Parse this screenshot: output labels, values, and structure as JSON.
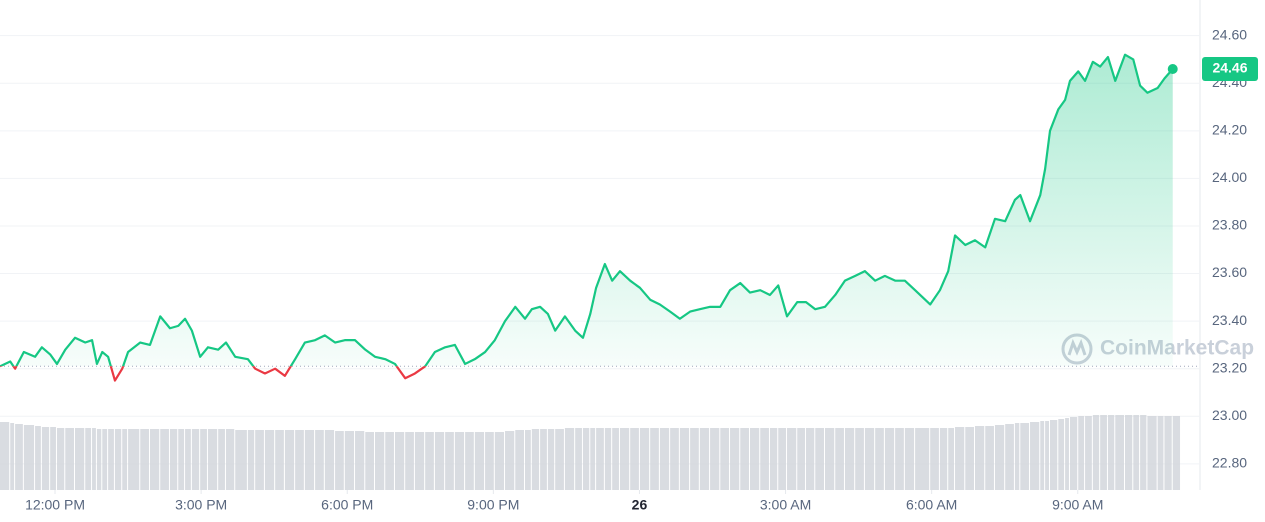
{
  "chart_data": {
    "type": "line",
    "watermark": "CoinMarketCap",
    "baseline": 23.21,
    "line_color": "#16c784",
    "below_color": "#ea3943",
    "volume_color": "#cfd3da",
    "grid": true,
    "xlim": [
      -1.13,
      23.51
    ],
    "ylim": [
      22.69,
      24.75
    ],
    "xticks": [
      {
        "value": 0,
        "label": "12:00 PM"
      },
      {
        "value": 3,
        "label": "3:00 PM"
      },
      {
        "value": 6,
        "label": "6:00 PM"
      },
      {
        "value": 9,
        "label": "9:00 PM"
      },
      {
        "value": 12,
        "label": "26"
      },
      {
        "value": 15,
        "label": "3:00 AM"
      },
      {
        "value": 18,
        "label": "6:00 AM"
      },
      {
        "value": 21,
        "label": "9:00 AM"
      }
    ],
    "yticks": [
      {
        "value": 22.8,
        "label": "22.80"
      },
      {
        "value": 23.0,
        "label": "23.00"
      },
      {
        "value": 23.2,
        "label": "23.20"
      },
      {
        "value": 23.4,
        "label": "23.40"
      },
      {
        "value": 23.6,
        "label": "23.60"
      },
      {
        "value": 23.8,
        "label": "23.80"
      },
      {
        "value": 24.0,
        "label": "24.00"
      },
      {
        "value": 24.2,
        "label": "24.20"
      },
      {
        "value": 24.4,
        "label": "24.40"
      },
      {
        "value": 24.6,
        "label": "24.60"
      }
    ],
    "x": [
      -1.13,
      -0.92,
      -0.82,
      -0.64,
      -0.41,
      -0.27,
      -0.1,
      0.04,
      0.21,
      0.41,
      0.62,
      0.76,
      0.86,
      0.97,
      1.09,
      1.23,
      1.38,
      1.5,
      1.75,
      1.95,
      2.16,
      2.36,
      2.53,
      2.67,
      2.81,
      2.98,
      3.14,
      3.35,
      3.51,
      3.7,
      3.96,
      4.11,
      4.31,
      4.52,
      4.72,
      4.93,
      5.13,
      5.34,
      5.54,
      5.75,
      5.95,
      6.16,
      6.37,
      6.57,
      6.78,
      6.98,
      7.19,
      7.39,
      7.6,
      7.8,
      8.01,
      8.21,
      8.42,
      8.62,
      8.83,
      9.03,
      9.24,
      9.45,
      9.65,
      9.79,
      9.96,
      10.12,
      10.27,
      10.47,
      10.68,
      10.84,
      10.99,
      11.11,
      11.29,
      11.44,
      11.6,
      11.81,
      12.01,
      12.22,
      12.42,
      12.63,
      12.83,
      13.04,
      13.24,
      13.45,
      13.66,
      13.86,
      14.07,
      14.27,
      14.48,
      14.68,
      14.85,
      15.03,
      15.24,
      15.42,
      15.61,
      15.81,
      16.02,
      16.22,
      16.43,
      16.63,
      16.84,
      17.04,
      17.25,
      17.45,
      17.66,
      17.97,
      18.17,
      18.34,
      18.48,
      18.69,
      18.89,
      19.1,
      19.3,
      19.51,
      19.71,
      19.82,
      20.02,
      20.23,
      20.33,
      20.43,
      20.6,
      20.74,
      20.84,
      21.01,
      21.15,
      21.31,
      21.46,
      21.62,
      21.77,
      21.97,
      22.14,
      22.28,
      22.43,
      22.64,
      22.78,
      22.95
    ],
    "series": [
      {
        "name": "Price",
        "values": [
          23.21,
          23.23,
          23.2,
          23.27,
          23.25,
          23.29,
          23.26,
          23.22,
          23.28,
          23.33,
          23.31,
          23.32,
          23.22,
          23.27,
          23.25,
          23.15,
          23.2,
          23.27,
          23.31,
          23.3,
          23.42,
          23.37,
          23.38,
          23.41,
          23.36,
          23.25,
          23.29,
          23.28,
          23.31,
          23.25,
          23.24,
          23.2,
          23.18,
          23.2,
          23.17,
          23.24,
          23.31,
          23.32,
          23.34,
          23.31,
          23.32,
          23.32,
          23.28,
          23.25,
          23.24,
          23.22,
          23.16,
          23.18,
          23.21,
          23.27,
          23.29,
          23.3,
          23.22,
          23.24,
          23.27,
          23.32,
          23.4,
          23.46,
          23.41,
          23.45,
          23.46,
          23.43,
          23.36,
          23.42,
          23.36,
          23.33,
          23.43,
          23.54,
          23.64,
          23.57,
          23.61,
          23.57,
          23.54,
          23.49,
          23.47,
          23.44,
          23.41,
          23.44,
          23.45,
          23.46,
          23.46,
          23.53,
          23.56,
          23.52,
          23.53,
          23.51,
          23.55,
          23.42,
          23.48,
          23.48,
          23.45,
          23.46,
          23.51,
          23.57,
          23.59,
          23.61,
          23.57,
          23.59,
          23.57,
          23.57,
          23.53,
          23.47,
          23.53,
          23.61,
          23.76,
          23.72,
          23.74,
          23.71,
          23.83,
          23.82,
          23.91,
          23.93,
          23.82,
          23.93,
          24.04,
          24.2,
          24.29,
          24.33,
          24.41,
          24.45,
          24.41,
          24.49,
          24.47,
          24.51,
          24.41,
          24.52,
          24.5,
          24.39,
          24.36,
          24.38,
          24.42,
          24.46
        ]
      },
      {
        "name": "Volume",
        "values": [
          68,
          67,
          66,
          65,
          64,
          63,
          63,
          62,
          62,
          62,
          62,
          62,
          61,
          61,
          61,
          61,
          61,
          61,
          61,
          61,
          61,
          61,
          61,
          61,
          61,
          61,
          61,
          61,
          61,
          60,
          60,
          60,
          60,
          60,
          60,
          60,
          60,
          60,
          60,
          59,
          59,
          59,
          58,
          58,
          58,
          58,
          58,
          58,
          58,
          58,
          58,
          58,
          58,
          58,
          58,
          58,
          59,
          60,
          60,
          61,
          61,
          61,
          61,
          62,
          62,
          62,
          62,
          62,
          62,
          62,
          62,
          62,
          62,
          62,
          62,
          62,
          62,
          62,
          62,
          62,
          62,
          62,
          62,
          62,
          62,
          62,
          62,
          62,
          62,
          62,
          62,
          62,
          62,
          62,
          62,
          62,
          62,
          62,
          62,
          62,
          62,
          62,
          62,
          62,
          63,
          63,
          64,
          64,
          65,
          66,
          67,
          67,
          68,
          69,
          69,
          70,
          71,
          72,
          73,
          74,
          74,
          75,
          75,
          75,
          75,
          75,
          75,
          75,
          74,
          74,
          74,
          74
        ]
      }
    ]
  }
}
